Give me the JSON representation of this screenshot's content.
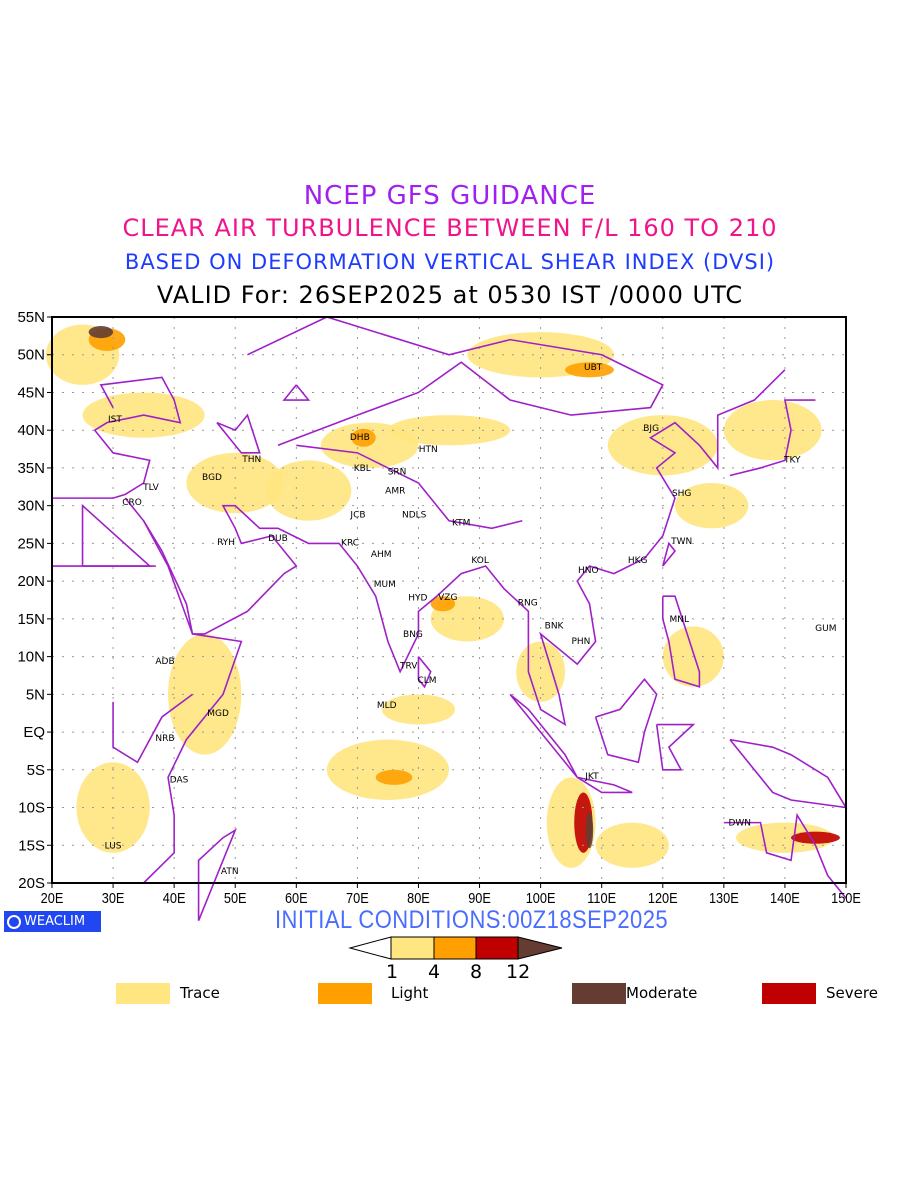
{
  "titles": {
    "line1": "NCEP GFS GUIDANCE",
    "line2": "CLEAR AIR TURBULENCE BETWEEN F/L 160 TO 210",
    "line3": "BASED ON DEFORMATION VERTICAL SHEAR INDEX (DVSI)",
    "line4": "VALID For: 26SEP2025 at 0530 IST /0000 UTC"
  },
  "map": {
    "lon_range": [
      20,
      150
    ],
    "lat_range": [
      -20,
      55
    ],
    "x_ticks": [
      "20E",
      "30E",
      "40E",
      "50E",
      "60E",
      "70E",
      "80E",
      "90E",
      "100E",
      "110E",
      "120E",
      "130E",
      "140E",
      "150E"
    ],
    "y_ticks": [
      "55N",
      "50N",
      "45N",
      "40N",
      "35N",
      "30N",
      "25N",
      "20N",
      "15N",
      "10N",
      "5N",
      "EQ",
      "5S",
      "10S",
      "15S",
      "20S"
    ],
    "colors": {
      "border": "#a020c8",
      "trace": "#ffe680",
      "light": "#ffa000",
      "severe": "#c00000",
      "moderate": "#643c32"
    },
    "stations": [
      {
        "code": "IST",
        "lon": 30.3,
        "lat": 41.5
      },
      {
        "code": "THN",
        "lon": 52.7,
        "lat": 36.2
      },
      {
        "code": "BGD",
        "lon": 46.2,
        "lat": 33.8
      },
      {
        "code": "TLV",
        "lon": 36.2,
        "lat": 32.5
      },
      {
        "code": "CRO",
        "lon": 33.1,
        "lat": 30.5
      },
      {
        "code": "RYH",
        "lon": 48.5,
        "lat": 25.2
      },
      {
        "code": "DUB",
        "lon": 57.0,
        "lat": 25.7
      },
      {
        "code": "DHB",
        "lon": 70.4,
        "lat": 39.1
      },
      {
        "code": "KBL",
        "lon": 70.8,
        "lat": 35.0
      },
      {
        "code": "SRN",
        "lon": 76.5,
        "lat": 34.5
      },
      {
        "code": "HTN",
        "lon": 81.6,
        "lat": 37.5
      },
      {
        "code": "AMR",
        "lon": 76.2,
        "lat": 32.0
      },
      {
        "code": "JCB",
        "lon": 70.1,
        "lat": 28.8
      },
      {
        "code": "NDLS",
        "lon": 79.3,
        "lat": 28.8
      },
      {
        "code": "KTM",
        "lon": 87.0,
        "lat": 27.8
      },
      {
        "code": "KRC",
        "lon": 68.8,
        "lat": 25.1
      },
      {
        "code": "AHM",
        "lon": 73.9,
        "lat": 23.6
      },
      {
        "code": "MUM",
        "lon": 74.5,
        "lat": 19.6
      },
      {
        "code": "HYD",
        "lon": 79.9,
        "lat": 17.8
      },
      {
        "code": "VZG",
        "lon": 84.8,
        "lat": 17.9
      },
      {
        "code": "KOL",
        "lon": 90.1,
        "lat": 22.8
      },
      {
        "code": "BNG",
        "lon": 79.1,
        "lat": 13.0
      },
      {
        "code": "TRV",
        "lon": 78.4,
        "lat": 8.8
      },
      {
        "code": "CLM",
        "lon": 81.4,
        "lat": 6.9
      },
      {
        "code": "ADB",
        "lon": 38.5,
        "lat": 9.4
      },
      {
        "code": "MGD",
        "lon": 47.2,
        "lat": 2.5
      },
      {
        "code": "NRB",
        "lon": 38.5,
        "lat": -0.8
      },
      {
        "code": "DAS",
        "lon": 40.8,
        "lat": -6.3
      },
      {
        "code": "LUS",
        "lon": 30.0,
        "lat": -15.0
      },
      {
        "code": "ATN",
        "lon": 49.1,
        "lat": -18.4
      },
      {
        "code": "MLD",
        "lon": 74.8,
        "lat": 3.6
      },
      {
        "code": "UBT",
        "lon": 108.6,
        "lat": 48.4
      },
      {
        "code": "BJG",
        "lon": 118.1,
        "lat": 40.3
      },
      {
        "code": "TKY",
        "lon": 141.2,
        "lat": 36.1
      },
      {
        "code": "SHG",
        "lon": 123.1,
        "lat": 31.7
      },
      {
        "code": "TWN",
        "lon": 123.1,
        "lat": 25.3
      },
      {
        "code": "HKG",
        "lon": 115.9,
        "lat": 22.8
      },
      {
        "code": "HNO",
        "lon": 107.8,
        "lat": 21.5
      },
      {
        "code": "RNG",
        "lon": 97.9,
        "lat": 17.2
      },
      {
        "code": "BNK",
        "lon": 102.2,
        "lat": 14.1
      },
      {
        "code": "PHN",
        "lon": 106.6,
        "lat": 12.1
      },
      {
        "code": "MNL",
        "lon": 122.7,
        "lat": 15.0
      },
      {
        "code": "GUM",
        "lon": 146.7,
        "lat": 13.8
      },
      {
        "code": "JKT",
        "lon": 108.4,
        "lat": -5.8
      },
      {
        "code": "DWN",
        "lon": 132.6,
        "lat": -12.0
      }
    ]
  },
  "footer": {
    "logo": "WEACLIM",
    "initial_conditions": "INITIAL CONDITIONS:00Z18SEP2025",
    "colorbar_labels": [
      "1",
      "4",
      "8",
      "12"
    ],
    "legend": [
      {
        "label": "Trace",
        "color": "#ffe680"
      },
      {
        "label": "Light",
        "color": "#ffa000"
      },
      {
        "label": "Moderate",
        "color": "#643c32"
      },
      {
        "label": "Severe",
        "color": "#c00000"
      }
    ]
  }
}
